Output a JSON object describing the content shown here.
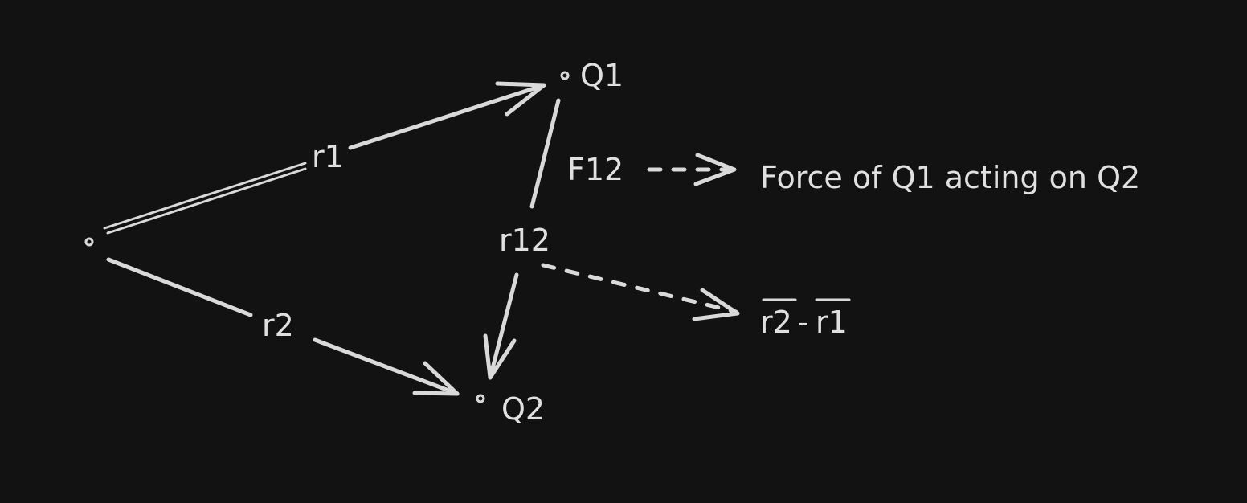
{
  "labels": {
    "origin_to_q1": "r1",
    "origin_to_q2": "r2",
    "q1_to_q2": "r12",
    "q1": "Q1",
    "q2": "Q2",
    "force": "F12"
  },
  "annotations": {
    "force_description": "Force of Q1 acting on Q2",
    "r12_expression_a": "r2",
    "r12_expression_sep": "-",
    "r12_expression_b": "r1"
  },
  "colors": {
    "background": "#121212",
    "ink": "#d9d9d9"
  }
}
